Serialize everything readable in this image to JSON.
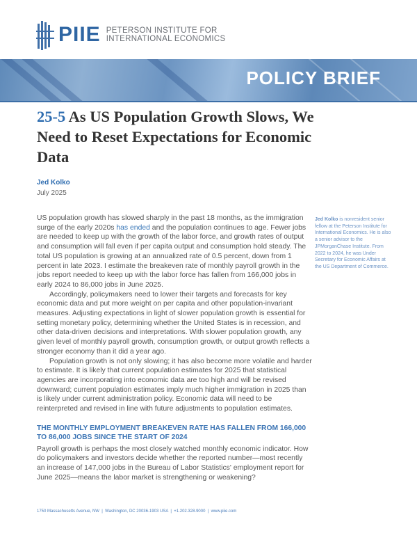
{
  "header": {
    "logo_acronym": "PIIE",
    "logo_name_line1": "PETERSON INSTITUTE FOR",
    "logo_name_line2": "INTERNATIONAL ECONOMICS",
    "banner_title": "POLICY BRIEF",
    "accent_color": "#2f6db0"
  },
  "title": {
    "number": "25-5",
    "text": "As US Population Growth Slows, We Need to Reset Expectations for Economic Data"
  },
  "author": "Jed Kolko",
  "date": "July 2025",
  "body": {
    "p1_before": "US population growth has slowed sharply in the past 18 months, as the immigration surge of the early 2020s ",
    "p1_link": "has ended",
    "p1_after": " and the population continues to age. Fewer jobs are needed to keep up with the growth of the labor force, and growth rates of output and consumption will fall even if per capita output and consumption hold steady. The total US population is growing at an annualized rate of 0.5 percent, down from 1 percent in late 2023. I estimate the breakeven rate of monthly payroll growth in the jobs report needed to keep up with the labor force has fallen from 166,000 jobs in early 2024 to 86,000 jobs in June 2025.",
    "p2": "Accordingly, policymakers need to lower their targets and forecasts for key economic data and put more weight on per capita and other population-invariant measures. Adjusting expectations in light of slower population growth is essential for setting monetary policy, determining whether the United States is in recession, and other data-driven decisions and interpretations. With slower population growth, any given level of monthly payroll growth, consumption growth, or output growth reflects a stronger economy than it did a year ago.",
    "p3": "Population growth is not only slowing; it has also become more volatile and harder to estimate. It is likely that current population estimates for 2025 that statistical agencies are incorporating into economic data are too high and will be revised downward; current population estimates imply much higher immigration in 2025 than is likely under current administration policy. Economic data will need to be reinterpreted and revised in line with future adjustments to population estimates.",
    "section_heading": "THE MONTHLY EMPLOYMENT BREAKEVEN RATE HAS FALLEN FROM 166,000 TO 86,000 JOBS SINCE THE START OF 2024",
    "p4": "Payroll growth is perhaps the most closely watched monthly economic indicator. How do policymakers and investors decide whether the reported number—most recently an increase of 147,000 jobs in the Bureau of Labor Statistics' employment report for June 2025—means the labor market is strengthening or weakening?"
  },
  "sidebar": {
    "name": "Jed Kolko",
    "bio": " is nonresident senior fellow at the Peterson Institute for International Economics. He is also a senior advisor to the JPMorganChase Institute. From 2022 to 2024, he was Under Secretary for Economic Affairs at the US Department of Commerce."
  },
  "footer": "1750 Massachusetts Avenue, NW  |  Washington, DC 20036-1903 USA  |  +1.202.328.9000  |  www.piie.com"
}
